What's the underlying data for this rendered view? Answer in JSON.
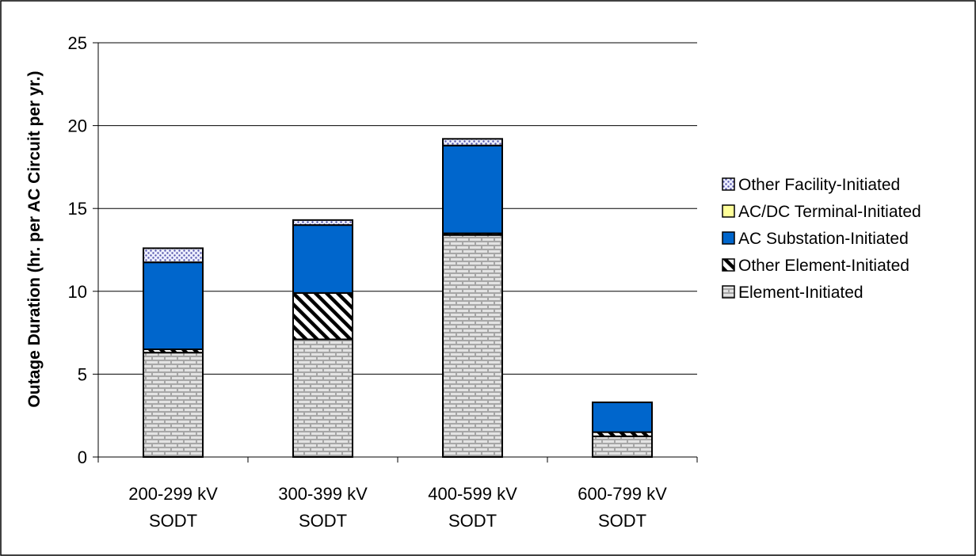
{
  "chart_data": {
    "type": "bar",
    "stacked": true,
    "title": "",
    "xlabel": "",
    "ylabel": "Outage Duration (hr. per AC Circuit per yr.)",
    "ylim": [
      0,
      25
    ],
    "yticks": [
      0,
      5,
      10,
      15,
      20,
      25
    ],
    "grid": true,
    "legend_position": "right",
    "categories": [
      [
        "200-299 kV",
        "SODT"
      ],
      [
        "300-399 kV",
        "SODT"
      ],
      [
        "400-599 kV",
        "SODT"
      ],
      [
        "600-799 kV",
        "SODT"
      ]
    ],
    "series": [
      {
        "name": "Element-Initiated",
        "values": [
          6.3,
          7.1,
          13.4,
          1.25
        ],
        "color": "#d9d9d9",
        "pattern": "brick"
      },
      {
        "name": "Other Element-Initiated",
        "values": [
          0.2,
          2.8,
          0.1,
          0.25
        ],
        "color": "#000000",
        "pattern": "diagonal"
      },
      {
        "name": "AC Substation-Initiated",
        "values": [
          5.25,
          4.1,
          5.3,
          1.8
        ],
        "color": "#0066cc",
        "pattern": "solid"
      },
      {
        "name": "AC/DC Terminal-Initiated",
        "values": [
          0,
          0,
          0,
          0
        ],
        "color": "#ffff99",
        "pattern": "solid"
      },
      {
        "name": "Other Facility-Initiated",
        "values": [
          0.85,
          0.3,
          0.4,
          0
        ],
        "color": "#9999ff",
        "pattern": "dots"
      }
    ],
    "legend_order": [
      "Other Facility-Initiated",
      "AC/DC Terminal-Initiated",
      "AC Substation-Initiated",
      "Other Element-Initiated",
      "Element-Initiated"
    ]
  }
}
